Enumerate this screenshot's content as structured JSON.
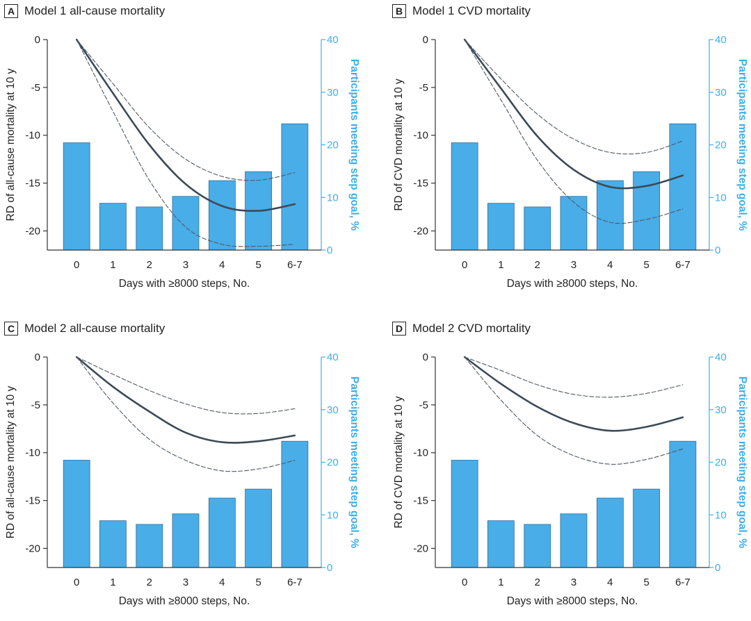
{
  "colors": {
    "bar_fill": "#49ade8",
    "bar_stroke": "#2b6f9c",
    "line": "#3b4a56",
    "ci_line": "#4d5a63",
    "right_axis": "#3daee9",
    "text": "#222222"
  },
  "chart_data": [
    {
      "type": "bar",
      "panel_letter": "A",
      "title": "Model 1 all-cause mortality",
      "xlabel": "Days with ≥8000 steps, No.",
      "ylabel_left": "RD of all-cause mortality at 10 y",
      "ylabel_right": "Participants meeting step goal, %",
      "categories": [
        "0",
        "1",
        "2",
        "3",
        "4",
        "5",
        "6-7"
      ],
      "left_ticks": [
        "0",
        "-5",
        "-10",
        "-15",
        "-20"
      ],
      "right_ticks": [
        "40",
        "30",
        "20",
        "10",
        "0"
      ],
      "ylim_left": [
        -22,
        0
      ],
      "ylim_right": [
        0,
        40
      ],
      "bars": [
        20.4,
        8.9,
        8.2,
        10.2,
        13.2,
        14.9,
        24.0
      ],
      "series": [
        {
          "role": "estimate",
          "style": "solid",
          "values": [
            0,
            -5.6,
            -11.0,
            -15.1,
            -17.4,
            -17.9,
            -17.2
          ]
        },
        {
          "role": "upper_ci",
          "style": "dashed",
          "values": [
            0,
            -4.6,
            -9.2,
            -12.5,
            -14.3,
            -14.7,
            -13.9
          ]
        },
        {
          "role": "lower_ci",
          "style": "dashed",
          "values": [
            0,
            -7.5,
            -14.7,
            -19.6,
            -21.4,
            -21.6,
            -21.4
          ]
        }
      ]
    },
    {
      "type": "bar",
      "panel_letter": "B",
      "title": "Model 1 CVD mortality",
      "xlabel": "Days with ≥8000 steps, No.",
      "ylabel_left": "RD of CVD mortality at 10 y",
      "ylabel_right": "Participants meeting step goal, %",
      "categories": [
        "0",
        "1",
        "2",
        "3",
        "4",
        "5",
        "6-7"
      ],
      "left_ticks": [
        "0",
        "-5",
        "-10",
        "-15",
        "-20"
      ],
      "right_ticks": [
        "40",
        "30",
        "20",
        "10",
        "0"
      ],
      "ylim_left": [
        -22,
        0
      ],
      "ylim_right": [
        0,
        40
      ],
      "bars": [
        20.4,
        8.9,
        8.2,
        10.2,
        13.2,
        14.9,
        24.0
      ],
      "series": [
        {
          "role": "estimate",
          "style": "solid",
          "values": [
            0,
            -5.1,
            -10.1,
            -13.6,
            -15.4,
            -15.3,
            -14.2
          ]
        },
        {
          "role": "upper_ci",
          "style": "dashed",
          "values": [
            0,
            -4.1,
            -7.8,
            -10.4,
            -11.8,
            -11.8,
            -10.6
          ]
        },
        {
          "role": "lower_ci",
          "style": "dashed",
          "values": [
            0,
            -6.3,
            -12.6,
            -17.0,
            -19.1,
            -18.8,
            -17.7
          ]
        }
      ]
    },
    {
      "type": "bar",
      "panel_letter": "C",
      "title": "Model 2 all-cause mortality",
      "xlabel": "Days with ≥8000 steps, No.",
      "ylabel_left": "RD of all-cause mortality at 10 y",
      "ylabel_right": "Participants meeting step goal, %",
      "categories": [
        "0",
        "1",
        "2",
        "3",
        "4",
        "5",
        "6-7"
      ],
      "left_ticks": [
        "0",
        "-5",
        "-10",
        "-15",
        "-20"
      ],
      "right_ticks": [
        "40",
        "30",
        "20",
        "10",
        "0"
      ],
      "ylim_left": [
        -22,
        0
      ],
      "ylim_right": [
        0,
        40
      ],
      "bars": [
        20.4,
        8.9,
        8.2,
        10.2,
        13.2,
        14.9,
        24.0
      ],
      "series": [
        {
          "role": "estimate",
          "style": "solid",
          "values": [
            0,
            -3.1,
            -5.7,
            -7.9,
            -8.9,
            -8.8,
            -8.2
          ]
        },
        {
          "role": "upper_ci",
          "style": "dashed",
          "values": [
            0,
            -1.8,
            -3.5,
            -4.9,
            -5.8,
            -5.9,
            -5.4
          ]
        },
        {
          "role": "lower_ci",
          "style": "dashed",
          "values": [
            0,
            -4.8,
            -8.6,
            -10.8,
            -11.9,
            -11.7,
            -10.8
          ]
        }
      ]
    },
    {
      "type": "bar",
      "panel_letter": "D",
      "title": "Model 2 CVD mortality",
      "xlabel": "Days with ≥8000 steps, No.",
      "ylabel_left": "RD of CVD mortality at 10 y",
      "ylabel_right": "Participants meeting step goal, %",
      "categories": [
        "0",
        "1",
        "2",
        "3",
        "4",
        "5",
        "6-7"
      ],
      "left_ticks": [
        "0",
        "-5",
        "-10",
        "-15",
        "-20"
      ],
      "right_ticks": [
        "40",
        "30",
        "20",
        "10",
        "0"
      ],
      "ylim_left": [
        -22,
        0
      ],
      "ylim_right": [
        0,
        40
      ],
      "bars": [
        20.4,
        8.9,
        8.2,
        10.2,
        13.2,
        14.9,
        24.0
      ],
      "series": [
        {
          "role": "estimate",
          "style": "solid",
          "values": [
            0,
            -2.8,
            -5.2,
            -6.9,
            -7.7,
            -7.3,
            -6.3
          ]
        },
        {
          "role": "upper_ci",
          "style": "dashed",
          "values": [
            0,
            -1.4,
            -2.9,
            -3.9,
            -4.2,
            -3.8,
            -2.9
          ]
        },
        {
          "role": "lower_ci",
          "style": "dashed",
          "values": [
            0,
            -4.5,
            -8.2,
            -10.3,
            -11.2,
            -10.7,
            -9.6
          ]
        }
      ]
    }
  ]
}
